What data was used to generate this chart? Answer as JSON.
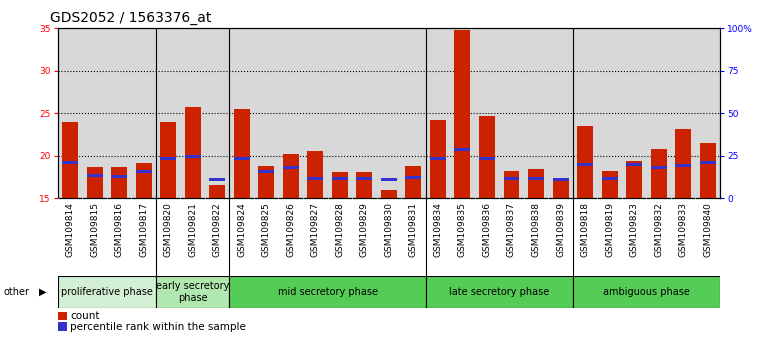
{
  "title": "GDS2052 / 1563376_at",
  "samples": [
    "GSM109814",
    "GSM109815",
    "GSM109816",
    "GSM109817",
    "GSM109820",
    "GSM109821",
    "GSM109822",
    "GSM109824",
    "GSM109825",
    "GSM109826",
    "GSM109827",
    "GSM109828",
    "GSM109829",
    "GSM109830",
    "GSM109831",
    "GSM109834",
    "GSM109835",
    "GSM109836",
    "GSM109837",
    "GSM109838",
    "GSM109839",
    "GSM109818",
    "GSM109819",
    "GSM109823",
    "GSM109832",
    "GSM109833",
    "GSM109840"
  ],
  "count_values": [
    24.0,
    18.7,
    18.7,
    19.2,
    24.0,
    25.7,
    16.5,
    25.5,
    18.8,
    20.2,
    20.6,
    18.1,
    18.1,
    16.0,
    18.8,
    24.2,
    34.8,
    24.7,
    18.2,
    18.4,
    17.2,
    23.5,
    18.2,
    19.4,
    20.8,
    23.1,
    21.5
  ],
  "percentile_values": [
    19.0,
    17.5,
    17.4,
    18.0,
    19.5,
    19.7,
    17.0,
    19.5,
    18.0,
    18.5,
    17.2,
    17.2,
    17.2,
    17.0,
    17.3,
    19.5,
    20.6,
    19.5,
    17.2,
    17.2,
    17.0,
    18.8,
    17.2,
    18.8,
    18.5,
    18.7,
    19.0
  ],
  "phase_groups": [
    {
      "label": "proliferative phase",
      "start": 0,
      "end": 4,
      "color": "#d4f0d4"
    },
    {
      "label": "early secretory\nphase",
      "start": 4,
      "end": 7,
      "color": "#b0e8b0"
    },
    {
      "label": "mid secretory phase",
      "start": 7,
      "end": 15,
      "color": "#55cc55"
    },
    {
      "label": "late secretory phase",
      "start": 15,
      "end": 21,
      "color": "#55cc55"
    },
    {
      "label": "ambiguous phase",
      "start": 21,
      "end": 27,
      "color": "#55cc55"
    }
  ],
  "ylim_left": [
    15,
    35
  ],
  "ylim_right": [
    0,
    100
  ],
  "yticks_left": [
    15,
    20,
    25,
    30,
    35
  ],
  "yticks_right": [
    0,
    25,
    50,
    75,
    100
  ],
  "bar_color": "#cc2200",
  "percentile_color": "#3333cc",
  "bg_plot": "#d8d8d8",
  "bg_xtick": "#d0d0d0",
  "title_fontsize": 10,
  "tick_fontsize": 6.5,
  "phase_fontsize": 7,
  "legend_fontsize": 7.5
}
